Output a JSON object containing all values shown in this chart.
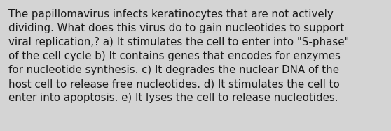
{
  "text": "The papillomavirus infects keratinocytes that are not actively\ndividing. What does this virus do to gain nucleotides to support\nviral replication,? a) It stimulates the cell to enter into \"S-phase\"\nof the cell cycle b) It contains genes that encodes for enzymes\nfor nucleotide synthesis. c) It degrades the nuclear DNA of the\nhost cell to release free nucleotides. d) It stimulates the cell to\nenter into apoptosis. e) It lyses the cell to release nucleotides.",
  "background_color": "#d4d4d4",
  "text_color": "#1a1a1a",
  "font_size": 10.8,
  "fig_width": 5.58,
  "fig_height": 1.88,
  "dpi": 100
}
